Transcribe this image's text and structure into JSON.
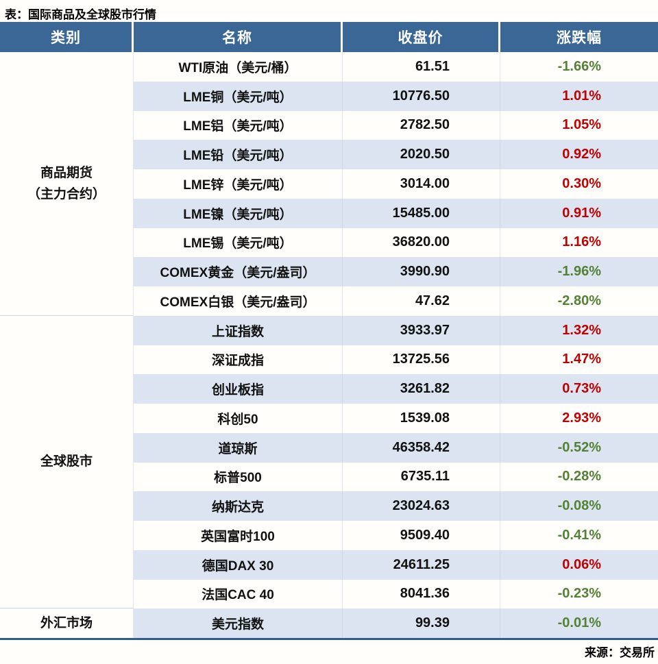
{
  "title": "表：国际商品及全球股市行情",
  "source": "来源：交易所",
  "colors": {
    "header_bg": "#3a6795",
    "row_alt_bg": "#dbe4f0",
    "up": "#c00000",
    "down": "#538135",
    "bottom_border": "#2e5c8f"
  },
  "table": {
    "headers": [
      "类别",
      "名称",
      "收盘价",
      "涨跌幅"
    ],
    "groups": [
      {
        "category_lines": [
          "商品期货",
          "（主力合约）"
        ],
        "rows": [
          {
            "name": "WTI原油（美元/桶）",
            "close": "61.51",
            "change": "-1.66%",
            "dir": "down"
          },
          {
            "name": "LME铜（美元/吨）",
            "close": "10776.50",
            "change": "1.01%",
            "dir": "up"
          },
          {
            "name": "LME铝（美元/吨）",
            "close": "2782.50",
            "change": "1.05%",
            "dir": "up"
          },
          {
            "name": "LME铅（美元/吨）",
            "close": "2020.50",
            "change": "0.92%",
            "dir": "up"
          },
          {
            "name": "LME锌（美元/吨）",
            "close": "3014.00",
            "change": "0.30%",
            "dir": "up"
          },
          {
            "name": "LME镍（美元/吨）",
            "close": "15485.00",
            "change": "0.91%",
            "dir": "up"
          },
          {
            "name": "LME锡（美元/吨）",
            "close": "36820.00",
            "change": "1.16%",
            "dir": "up"
          },
          {
            "name": "COMEX黄金（美元/盎司）",
            "close": "3990.90",
            "change": "-1.96%",
            "dir": "down"
          },
          {
            "name": "COMEX白银（美元/盎司）",
            "close": "47.62",
            "change": "-2.80%",
            "dir": "down"
          }
        ]
      },
      {
        "category_lines": [
          "全球股市"
        ],
        "rows": [
          {
            "name": "上证指数",
            "close": "3933.97",
            "change": "1.32%",
            "dir": "up"
          },
          {
            "name": "深证成指",
            "close": "13725.56",
            "change": "1.47%",
            "dir": "up"
          },
          {
            "name": "创业板指",
            "close": "3261.82",
            "change": "0.73%",
            "dir": "up"
          },
          {
            "name": "科创50",
            "close": "1539.08",
            "change": "2.93%",
            "dir": "up"
          },
          {
            "name": "道琼斯",
            "close": "46358.42",
            "change": "-0.52%",
            "dir": "down"
          },
          {
            "name": "标普500",
            "close": "6735.11",
            "change": "-0.28%",
            "dir": "down"
          },
          {
            "name": "纳斯达克",
            "close": "23024.63",
            "change": "-0.08%",
            "dir": "down"
          },
          {
            "name": "英国富时100",
            "close": "9509.40",
            "change": "-0.41%",
            "dir": "down"
          },
          {
            "name": "德国DAX 30",
            "close": "24611.25",
            "change": "0.06%",
            "dir": "up"
          },
          {
            "name": "法国CAC 40",
            "close": "8041.36",
            "change": "-0.23%",
            "dir": "down"
          }
        ]
      },
      {
        "category_lines": [
          "外汇市场"
        ],
        "rows": [
          {
            "name": "美元指数",
            "close": "99.39",
            "change": "-0.01%",
            "dir": "down"
          }
        ]
      }
    ]
  },
  "chart_data": {
    "type": "table",
    "title": "表：国际商品及全球股市行情",
    "columns": [
      "类别",
      "名称",
      "收盘价",
      "涨跌幅"
    ],
    "rows": [
      [
        "商品期货（主力合约）",
        "WTI原油（美元/桶）",
        61.51,
        "-1.66%"
      ],
      [
        "商品期货（主力合约）",
        "LME铜（美元/吨）",
        10776.5,
        "1.01%"
      ],
      [
        "商品期货（主力合约）",
        "LME铝（美元/吨）",
        2782.5,
        "1.05%"
      ],
      [
        "商品期货（主力合约）",
        "LME铅（美元/吨）",
        2020.5,
        "0.92%"
      ],
      [
        "商品期货（主力合约）",
        "LME锌（美元/吨）",
        3014.0,
        "0.30%"
      ],
      [
        "商品期货（主力合约）",
        "LME镍（美元/吨）",
        15485.0,
        "0.91%"
      ],
      [
        "商品期货（主力合约）",
        "LME锡（美元/吨）",
        36820.0,
        "1.16%"
      ],
      [
        "商品期货（主力合约）",
        "COMEX黄金（美元/盎司）",
        3990.9,
        "-1.96%"
      ],
      [
        "商品期货（主力合约）",
        "COMEX白银（美元/盎司）",
        47.62,
        "-2.80%"
      ],
      [
        "全球股市",
        "上证指数",
        3933.97,
        "1.32%"
      ],
      [
        "全球股市",
        "深证成指",
        13725.56,
        "1.47%"
      ],
      [
        "全球股市",
        "创业板指",
        3261.82,
        "0.73%"
      ],
      [
        "全球股市",
        "科创50",
        1539.08,
        "2.93%"
      ],
      [
        "全球股市",
        "道琼斯",
        46358.42,
        "-0.52%"
      ],
      [
        "全球股市",
        "标普500",
        6735.11,
        "-0.28%"
      ],
      [
        "全球股市",
        "纳斯达克",
        23024.63,
        "-0.08%"
      ],
      [
        "全球股市",
        "英国富时100",
        9509.4,
        "-0.41%"
      ],
      [
        "全球股市",
        "德国DAX 30",
        24611.25,
        "0.06%"
      ],
      [
        "全球股市",
        "法国CAC 40",
        8041.36,
        "-0.23%"
      ],
      [
        "外汇市场",
        "美元指数",
        99.39,
        "-0.01%"
      ]
    ],
    "source_note": "来源：交易所",
    "legend_position": "none",
    "notes": "正值红色、负值绿色（中国行情配色）；偶数行浅蓝底纹"
  }
}
